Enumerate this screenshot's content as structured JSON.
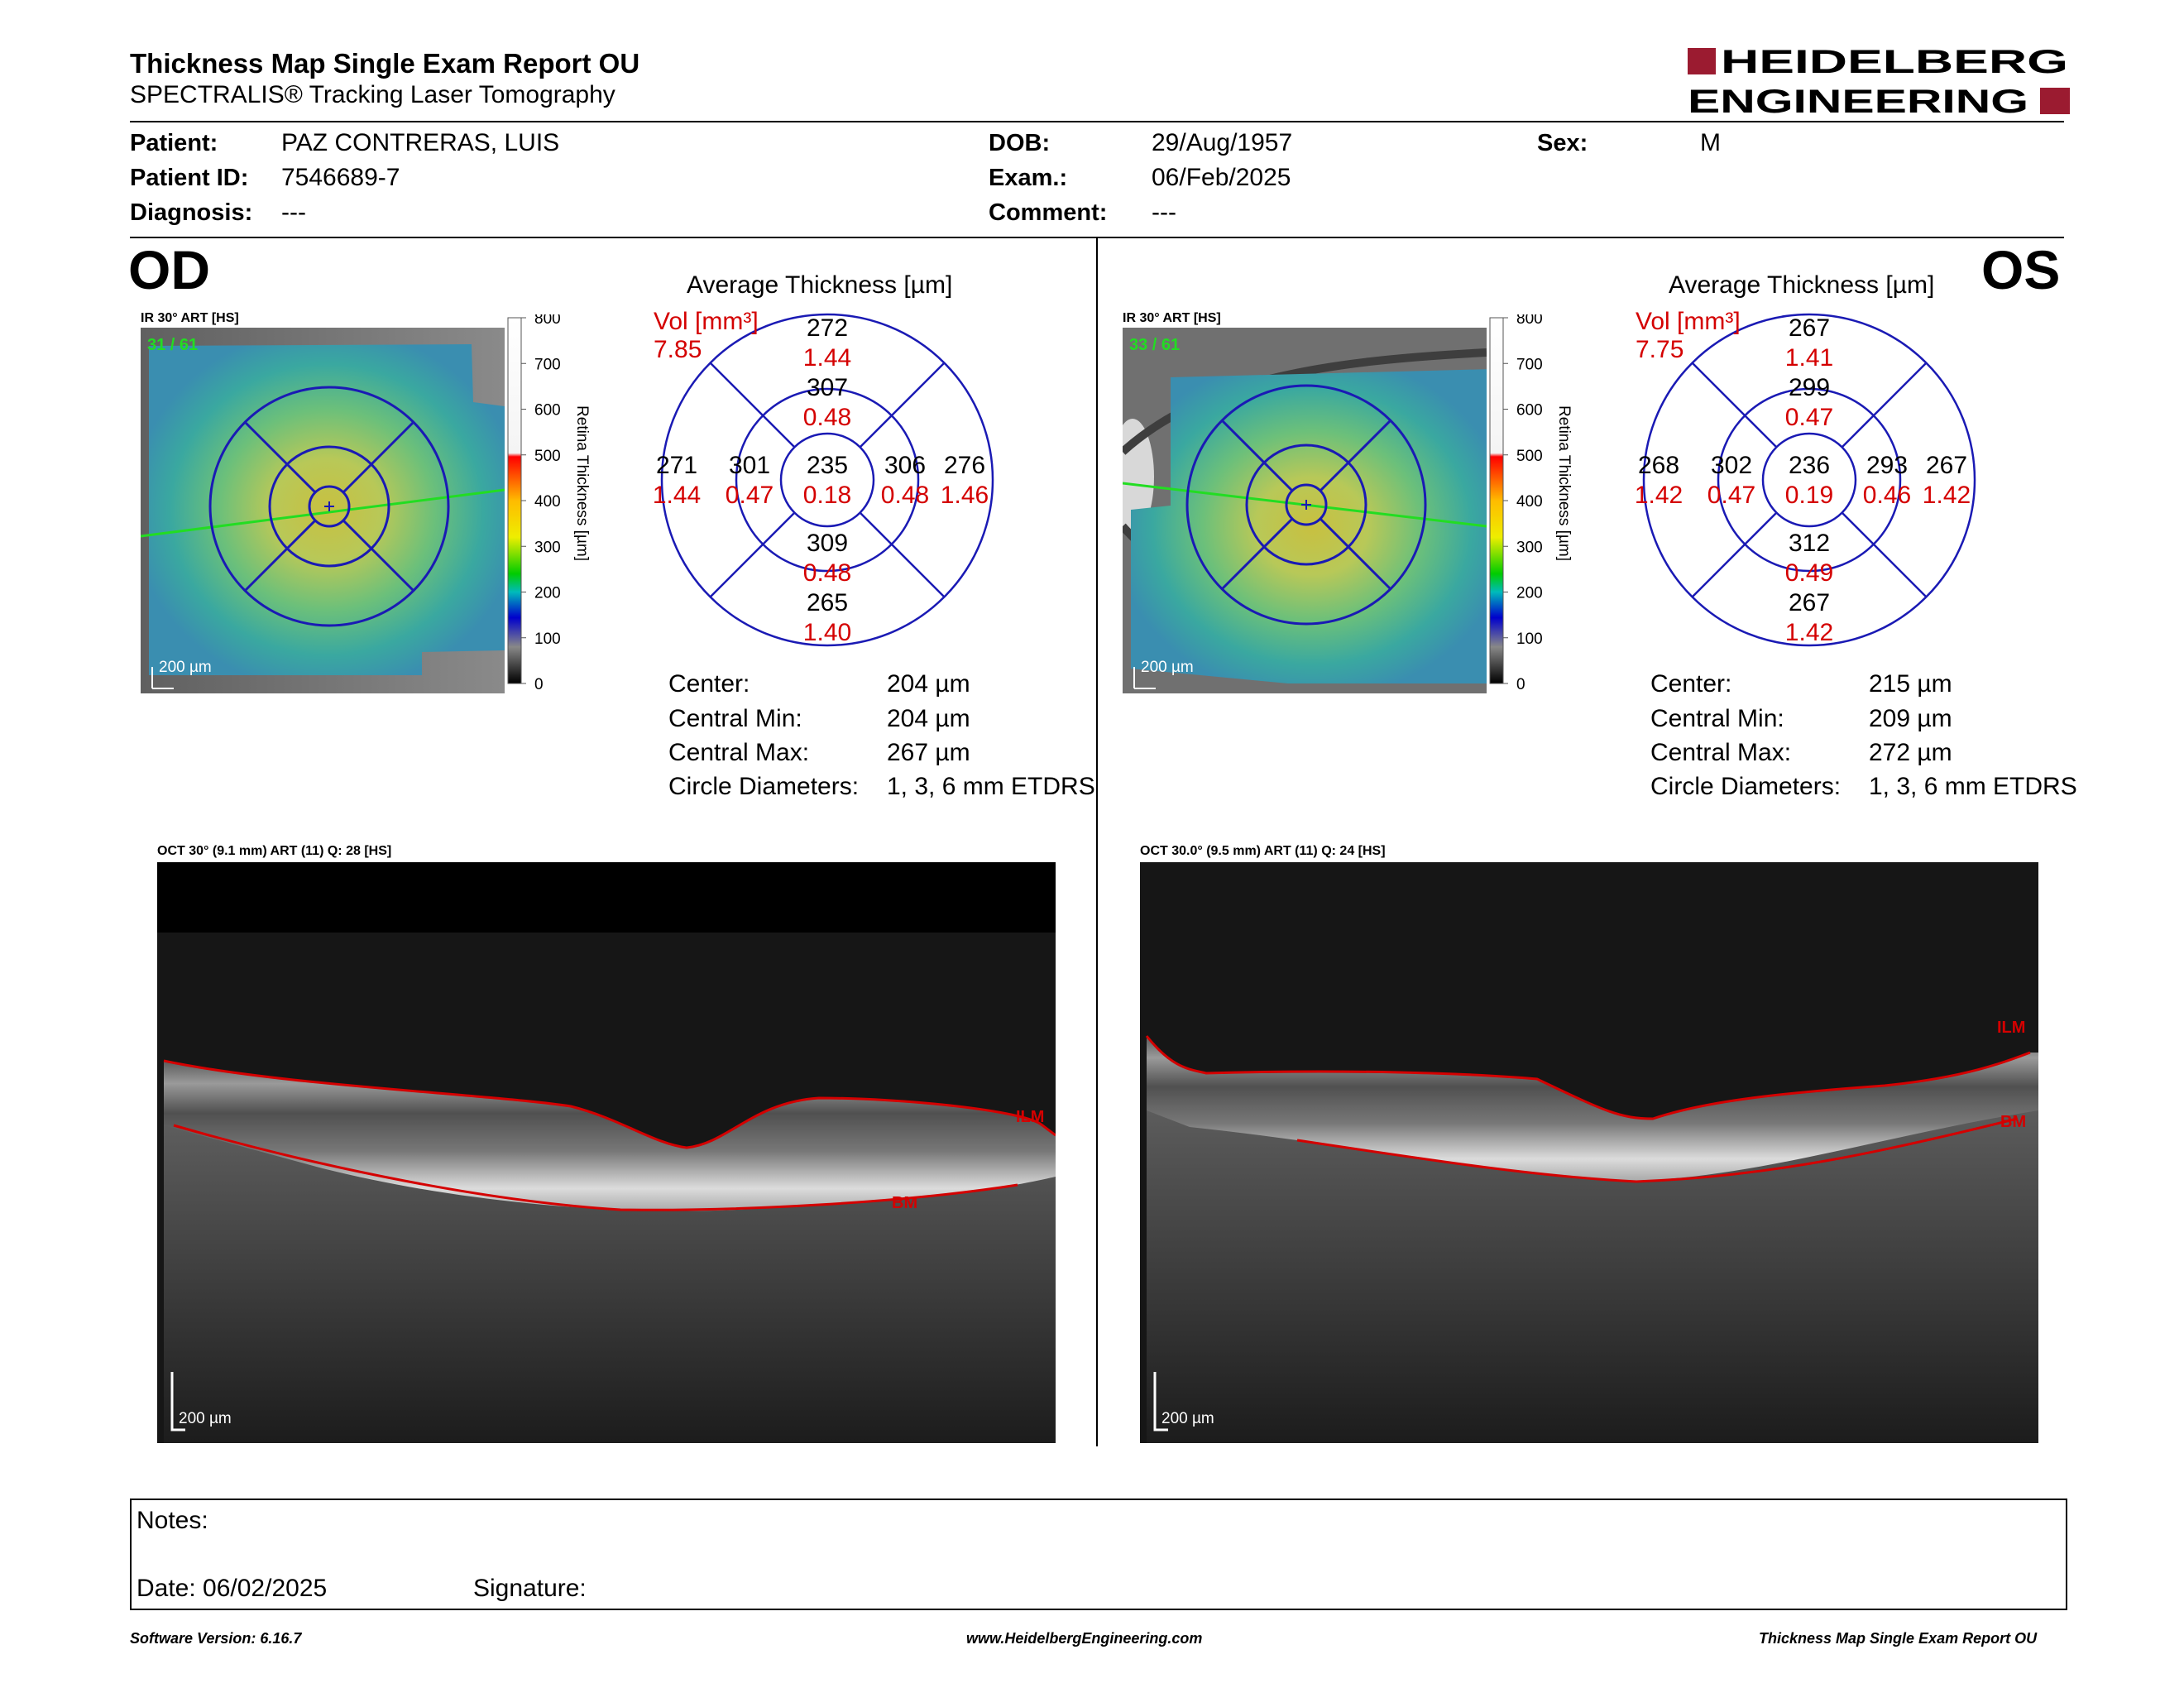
{
  "header": {
    "title": "Thickness Map Single Exam Report OU",
    "subtitle": "SPECTRALIS® Tracking Laser Tomography",
    "logo_line1": "HEIDELBERG",
    "logo_line2": "ENGINEERING"
  },
  "patient": {
    "patient_label": "Patient:",
    "patient_value": "PAZ CONTRERAS, LUIS",
    "id_label": "Patient ID:",
    "id_value": "7546689-7",
    "diagnosis_label": "Diagnosis:",
    "diagnosis_value": "---",
    "dob_label": "DOB:",
    "dob_value": "29/Aug/1957",
    "exam_label": "Exam.:",
    "exam_value": "06/Feb/2025",
    "comment_label": "Comment:",
    "comment_value": "---",
    "sex_label": "Sex:",
    "sex_value": "M"
  },
  "colorbar": {
    "ticks": [
      "800",
      "700",
      "600",
      "500",
      "400",
      "300",
      "200",
      "100",
      "0"
    ],
    "label": "Retina Thickness [µm]"
  },
  "od": {
    "eye": "OD",
    "ir_caption": "IR 30° ART [HS]",
    "ir_counter": "31 / 61",
    "scale_label": "200 µm",
    "avg_title": "Average Thickness [µm]",
    "vol_label": "Vol [mm³]",
    "vol_value": "7.85",
    "grid": {
      "center": [
        "235",
        "0.18"
      ],
      "inner_sup": [
        "307",
        "0.48"
      ],
      "inner_inf": [
        "309",
        "0.48"
      ],
      "inner_left": [
        "301",
        "0.47"
      ],
      "inner_right": [
        "306",
        "0.48"
      ],
      "outer_sup": [
        "272",
        "1.44"
      ],
      "outer_inf": [
        "265",
        "1.40"
      ],
      "outer_left": [
        "271",
        "1.44"
      ],
      "outer_right": [
        "276",
        "1.46"
      ]
    },
    "stats": [
      {
        "label": "Center:",
        "value": "204 µm"
      },
      {
        "label": "Central Min:",
        "value": "204 µm"
      },
      {
        "label": "Central Max:",
        "value": "267 µm"
      },
      {
        "label": "Circle Diameters:",
        "value": "1, 3, 6 mm ETDRS"
      }
    ],
    "oct_caption": "OCT 30° (9.1 mm) ART (11) Q: 28 [HS]",
    "oct_scale": "200 µm",
    "ilm": "ILM",
    "bm": "BM"
  },
  "os": {
    "eye": "OS",
    "ir_caption": "IR 30° ART [HS]",
    "ir_counter": "33 / 61",
    "scale_label": "200 µm",
    "avg_title": "Average Thickness [µm]",
    "vol_label": "Vol [mm³]",
    "vol_value": "7.75",
    "grid": {
      "center": [
        "236",
        "0.19"
      ],
      "inner_sup": [
        "299",
        "0.47"
      ],
      "inner_inf": [
        "312",
        "0.49"
      ],
      "inner_left": [
        "302",
        "0.47"
      ],
      "inner_right": [
        "293",
        "0.46"
      ],
      "outer_sup": [
        "267",
        "1.41"
      ],
      "outer_inf": [
        "267",
        "1.42"
      ],
      "outer_left": [
        "268",
        "1.42"
      ],
      "outer_right": [
        "267",
        "1.42"
      ]
    },
    "stats": [
      {
        "label": "Center:",
        "value": "215 µm"
      },
      {
        "label": "Central Min:",
        "value": "209 µm"
      },
      {
        "label": "Central Max:",
        "value": "272 µm"
      },
      {
        "label": "Circle Diameters:",
        "value": "1, 3, 6 mm ETDRS"
      }
    ],
    "oct_caption": "OCT 30.0° (9.5 mm) ART (11) Q: 24 [HS]",
    "oct_scale": "200 µm",
    "ilm": "ILM",
    "bm": "BM"
  },
  "notes": {
    "notes_label": "Notes:",
    "date_label": "Date: 06/02/2025",
    "signature_label": "Signature:"
  },
  "footer": {
    "left": "Software Version: 6.16.7",
    "center": "www.HeidelbergEngineering.com",
    "right": "Thickness Map Single Exam Report OU"
  },
  "colors": {
    "brand_red": "#9b1b30",
    "value_red": "#d40000",
    "grid_blue": "#1a1ab4"
  }
}
